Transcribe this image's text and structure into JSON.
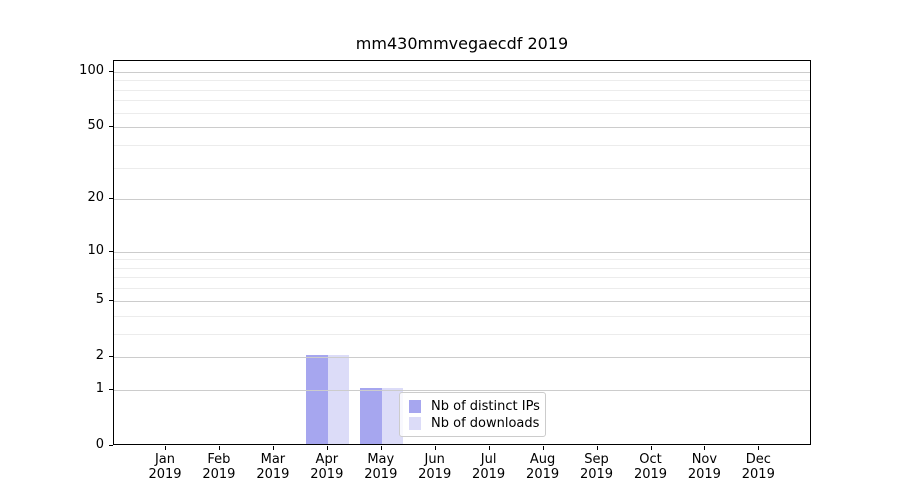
{
  "chart_data": {
    "type": "bar",
    "title": "mm430mmvegaecdf 2019",
    "categories": [
      "Jan",
      "Feb",
      "Mar",
      "Apr",
      "May",
      "Jun",
      "Jul",
      "Aug",
      "Sep",
      "Oct",
      "Nov",
      "Dec"
    ],
    "year_label": "2019",
    "series": [
      {
        "name": "Nb of distinct IPs",
        "color": "#a6a6ef",
        "values": [
          0,
          0,
          0,
          2,
          1,
          0,
          0,
          0,
          0,
          0,
          0,
          0
        ]
      },
      {
        "name": "Nb of downloads",
        "color": "#dcdcf8",
        "values": [
          0,
          0,
          0,
          2,
          1,
          0,
          0,
          0,
          0,
          0,
          0,
          0
        ]
      }
    ],
    "y_axis": {
      "scale": "log1p",
      "major_ticks": [
        0,
        1,
        2,
        5,
        10,
        20,
        50,
        100
      ],
      "minor_gridlines": [
        3,
        4,
        6,
        7,
        8,
        9,
        30,
        40,
        60,
        70,
        80,
        90
      ],
      "range": [
        0,
        114
      ]
    },
    "x_axis": {
      "label_format": "month over year"
    },
    "legend": {
      "location": "lower center",
      "entries": [
        "Nb of distinct IPs",
        "Nb of downloads"
      ]
    },
    "grid": {
      "major_color": "#cccccc",
      "minor_color": "#ececec",
      "axis": "y"
    }
  }
}
